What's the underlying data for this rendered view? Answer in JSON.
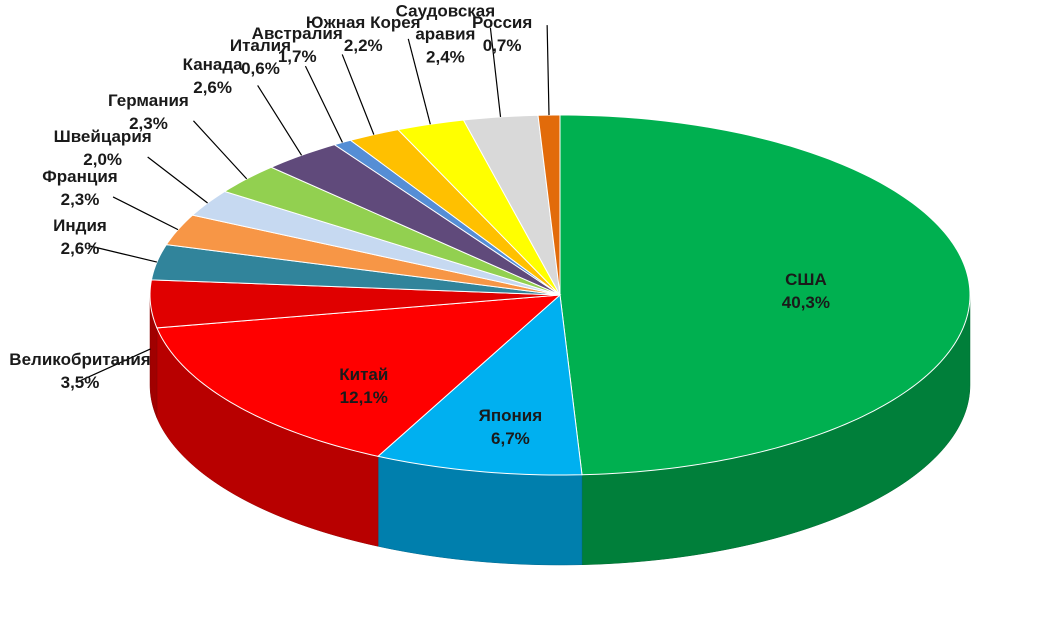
{
  "chart_data": {
    "type": "pie3d",
    "categories": [
      "США",
      "Япония",
      "Китай",
      "Великобритания",
      "Индия",
      "Франция",
      "Швейцария",
      "Германия",
      "Канада",
      "Италия",
      "Австралия",
      "Южная Корея",
      "Саудовская аравия",
      "Россия"
    ],
    "values": [
      40.3,
      6.7,
      12.1,
      3.5,
      2.6,
      2.3,
      2.0,
      2.3,
      2.6,
      0.6,
      1.7,
      2.2,
      2.4,
      0.7
    ],
    "value_labels": [
      "40,3%",
      "6,7%",
      "12,1%",
      "3,5%",
      "2,6%",
      "2,3%",
      "2,0%",
      "2,3%",
      "2,6%",
      "0,6%",
      "1,7%",
      "2,2%",
      "2,4%",
      "0,7%"
    ],
    "colors": [
      "#00b050",
      "#00b0f0",
      "#ff0000",
      "#e00000",
      "#31849b",
      "#f79646",
      "#c6d9f1",
      "#92d050",
      "#604a7b",
      "#558ed5",
      "#ffc000",
      "#ffff00",
      "#d9d9d9",
      "#e26b0a"
    ]
  }
}
